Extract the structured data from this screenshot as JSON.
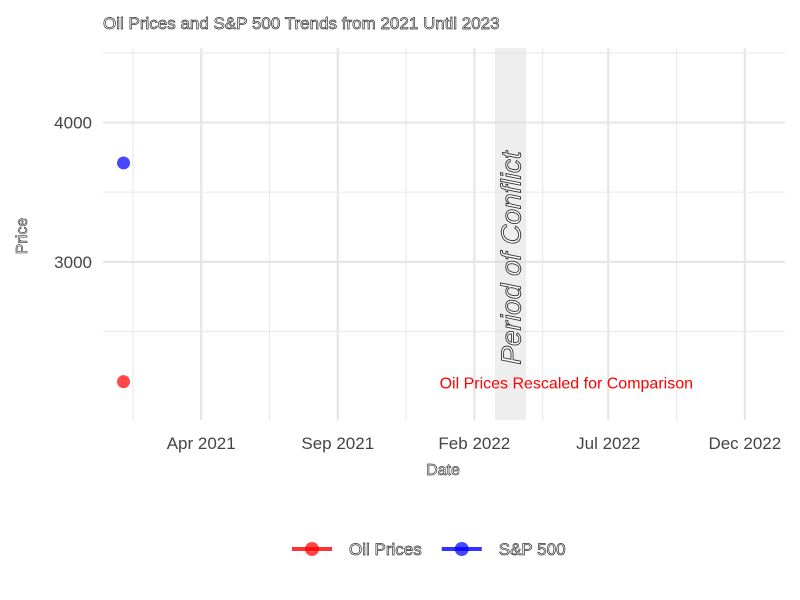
{
  "chart_data": {
    "type": "scatter",
    "title": "Oil Prices and S&P 500 Trends from 2021 Until 2023",
    "xlabel": "Date",
    "ylabel": "Price",
    "x_axis": {
      "type": "date",
      "range": [
        "2020-12-12",
        "2023-01-15"
      ],
      "ticks": [
        {
          "date": "2021-04-01",
          "label": "Apr 2021"
        },
        {
          "date": "2021-09-01",
          "label": "Sep 2021"
        },
        {
          "date": "2022-02-01",
          "label": "Feb 2022"
        },
        {
          "date": "2022-07-01",
          "label": "Jul 2022"
        },
        {
          "date": "2022-12-01",
          "label": "Dec 2022"
        }
      ]
    },
    "y_axis": {
      "range": [
        2000,
        4000
      ],
      "ticks": [
        3000,
        4000
      ],
      "range_max": 4535
    },
    "grid": true,
    "series": [
      {
        "name": "Oil Prices",
        "color": "#ff0000",
        "points": [
          {
            "x": "2021-01-04",
            "y": 2140
          }
        ]
      },
      {
        "name": "S&P 500",
        "color": "#0000ff",
        "points": [
          {
            "x": "2021-01-04",
            "y": 3710
          }
        ]
      }
    ],
    "shaded_region": {
      "start": "2022-02-24",
      "end": "2022-03-31",
      "label": "Period of Conflict",
      "color": "#d9d9d9"
    },
    "annotations": [
      {
        "text": "Oil Prices Rescaled for Comparison",
        "color": "#ff0000",
        "x": "2022-05-15",
        "y": 2140
      }
    ],
    "legend": {
      "position": "bottom"
    }
  }
}
